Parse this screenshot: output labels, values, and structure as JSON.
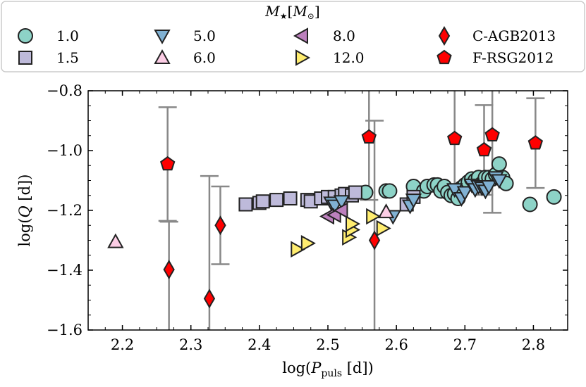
{
  "chart_data": {
    "type": "scatter",
    "xlabel": "log(P_puls [d])",
    "ylabel": "log(Q [d])",
    "xlabel_parts": {
      "pre": "log(",
      "var": "P",
      "sub": "puls",
      "post": " [d])"
    },
    "ylabel_parts": {
      "pre": "log(",
      "var": "Q",
      "post": " [d])"
    },
    "xlim": [
      2.15,
      2.85
    ],
    "ylim": [
      -1.6,
      -0.8
    ],
    "xticks": [
      2.2,
      2.3,
      2.4,
      2.5,
      2.6,
      2.7,
      2.8
    ],
    "yticks": [
      -1.6,
      -1.4,
      -1.2,
      -1.0,
      -0.8
    ],
    "xtick_labels": [
      "2.2",
      "2.3",
      "2.4",
      "2.5",
      "2.6",
      "2.7",
      "2.8"
    ],
    "ytick_labels": [
      "−1.6",
      "−1.4",
      "−1.2",
      "−1.0",
      "−0.8"
    ],
    "grid": false,
    "legend": {
      "title": "M★[M⊙]",
      "title_parts": {
        "var": "M",
        "star": "★",
        "bracket_open": "[",
        "msun": "M",
        "sun": "⊙",
        "bracket_close": "]"
      },
      "placement": "top",
      "columns": 4
    },
    "series": [
      {
        "name": "1.0",
        "marker": "circle",
        "color": "#8dd3c7",
        "x": [
          2.555,
          2.585,
          2.59,
          2.625,
          2.64,
          2.645,
          2.655,
          2.66,
          2.665,
          2.67,
          2.675,
          2.68,
          2.685,
          2.69,
          2.695,
          2.7,
          2.705,
          2.71,
          2.715,
          2.72,
          2.725,
          2.73,
          2.735,
          2.74,
          2.745,
          2.75,
          2.755,
          2.76,
          2.795,
          2.83
        ],
        "y": [
          -1.14,
          -1.135,
          -1.135,
          -1.12,
          -1.135,
          -1.12,
          -1.115,
          -1.115,
          -1.135,
          -1.12,
          -1.14,
          -1.15,
          -1.145,
          -1.16,
          -1.125,
          -1.115,
          -1.105,
          -1.095,
          -1.1,
          -1.09,
          -1.11,
          -1.09,
          -1.09,
          -1.095,
          -1.08,
          -1.045,
          -1.09,
          -1.11,
          -1.18,
          -1.155
        ]
      },
      {
        "name": "1.5",
        "marker": "square",
        "color": "#bebada",
        "x": [
          2.38,
          2.4,
          2.405,
          2.425,
          2.445,
          2.47,
          2.475,
          2.49,
          2.5,
          2.51,
          2.52,
          2.525,
          2.535,
          2.54,
          2.615,
          2.625
        ],
        "y": [
          -1.18,
          -1.175,
          -1.17,
          -1.165,
          -1.16,
          -1.165,
          -1.17,
          -1.16,
          -1.155,
          -1.155,
          -1.15,
          -1.145,
          -1.15,
          -1.14,
          -1.18,
          -1.155
        ]
      },
      {
        "name": "5.0",
        "marker": "triangle-down",
        "color": "#80b1d3",
        "x": [
          2.505,
          2.51,
          2.52,
          2.595,
          2.62,
          2.625,
          2.685,
          2.695,
          2.7,
          2.71,
          2.715,
          2.72,
          2.725,
          2.73,
          2.735,
          2.745,
          2.75
        ],
        "y": [
          -1.175,
          -1.185,
          -1.17,
          -1.22,
          -1.185,
          -1.165,
          -1.13,
          -1.16,
          -1.14,
          -1.115,
          -1.13,
          -1.12,
          -1.125,
          -1.135,
          -1.12,
          -1.09,
          -1.1
        ]
      },
      {
        "name": "6.0",
        "marker": "triangle-up",
        "color": "#fccde5",
        "x": [
          2.19,
          2.585
        ],
        "y": [
          -1.305,
          -1.205
        ]
      },
      {
        "name": "8.0",
        "marker": "triangle-left",
        "color": "#bc80bd",
        "x": [
          2.5,
          2.51,
          2.52
        ],
        "y": [
          -1.22,
          -1.215,
          -1.2
        ]
      },
      {
        "name": "12.0",
        "marker": "triangle-right",
        "color": "#ffed6f",
        "x": [
          2.455,
          2.47,
          2.53,
          2.535,
          2.535,
          2.565,
          2.58
        ],
        "y": [
          -1.33,
          -1.31,
          -1.29,
          -1.265,
          -1.245,
          -1.22,
          -1.26
        ]
      },
      {
        "name": "C-AGB2013",
        "marker": "diamond",
        "color": "#ff0000",
        "x": [
          2.268,
          2.327,
          2.343,
          2.568
        ],
        "y": [
          -1.398,
          -1.495,
          -1.25,
          -1.3
        ],
        "err_low": [
          0.28,
          0.25,
          0.13,
          0.45
        ],
        "err_high": [
          0.16,
          0.41,
          0.13,
          0.4
        ]
      },
      {
        "name": "F-RSG2012",
        "marker": "pentagon",
        "color": "#ff0000",
        "x": [
          2.266,
          2.56,
          2.685,
          2.728,
          2.74,
          2.803
        ],
        "y": [
          -1.045,
          -0.955,
          -0.96,
          -0.998,
          -0.948,
          -0.975
        ],
        "err_low": [
          0.19,
          0.21,
          0.18,
          0.15,
          0.26,
          0.15
        ],
        "err_high": [
          0.19,
          0.4,
          0.3,
          0.15,
          0.4,
          0.15
        ]
      }
    ]
  }
}
